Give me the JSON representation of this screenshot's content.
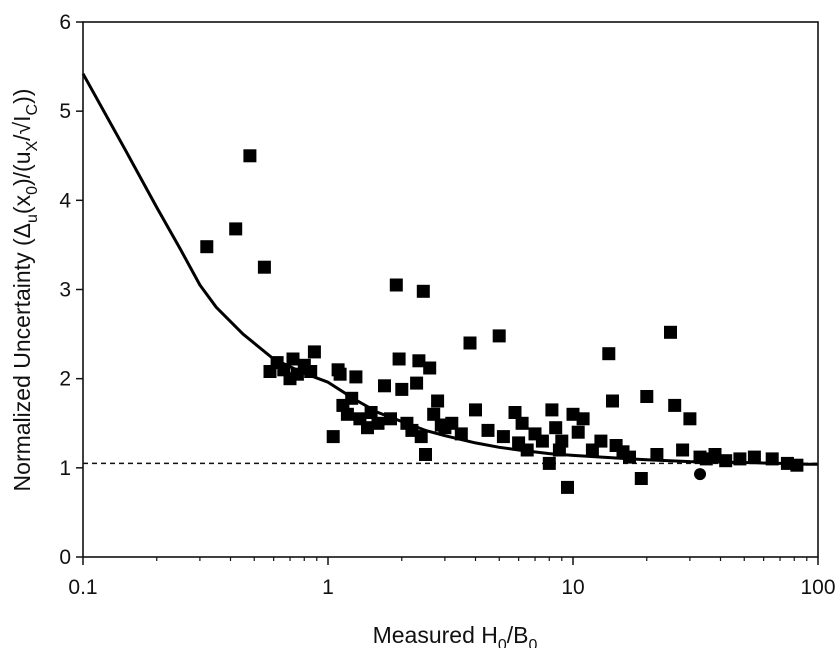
{
  "chart_data": {
    "type": "scatter",
    "x_scale": "log",
    "xlim": [
      0.1,
      100
    ],
    "ylim": [
      0,
      6
    ],
    "x_ticks": [
      "0.1",
      "1",
      "10",
      "100"
    ],
    "y_ticks": [
      "0",
      "1",
      "2",
      "3",
      "4",
      "5",
      "6"
    ],
    "xlabel": {
      "pre": "Measured H",
      "s1": "0",
      "mid": "/B",
      "s2": "0",
      "post": ""
    },
    "ylabel": {
      "p1": "Normalized Uncertainty (Δ",
      "s1": "u",
      "p2": "(x",
      "s2": "0",
      "p3": ")/(u",
      "s3": "X",
      "p4": "/√I",
      "s4": "C",
      "p5": "))"
    },
    "grid": false,
    "legend": "none",
    "reference_line": {
      "y": 1.05,
      "style": "dashed"
    },
    "curve": {
      "x": [
        0.1,
        0.15,
        0.2,
        0.25,
        0.3,
        0.35,
        0.45,
        0.6,
        0.8,
        1.0,
        1.3,
        1.6,
        2.0,
        2.5,
        3.0,
        4.0,
        5.0,
        6.0,
        8.0,
        10,
        15,
        20,
        30,
        50,
        70,
        90,
        100
      ],
      "y": [
        5.42,
        4.55,
        3.92,
        3.45,
        3.05,
        2.8,
        2.5,
        2.22,
        2.06,
        1.96,
        1.76,
        1.62,
        1.52,
        1.42,
        1.36,
        1.28,
        1.23,
        1.2,
        1.16,
        1.14,
        1.11,
        1.09,
        1.07,
        1.06,
        1.05,
        1.04,
        1.04
      ]
    },
    "points": {
      "x": [
        0.32,
        0.42,
        0.48,
        0.55,
        0.58,
        0.62,
        0.66,
        0.7,
        0.72,
        0.75,
        0.8,
        0.85,
        0.88,
        1.05,
        1.1,
        1.12,
        1.15,
        1.2,
        1.25,
        1.3,
        1.35,
        1.45,
        1.5,
        1.6,
        1.7,
        1.8,
        1.9,
        1.95,
        2.0,
        2.1,
        2.2,
        2.3,
        2.35,
        2.4,
        2.45,
        2.5,
        2.6,
        2.7,
        2.8,
        2.9,
        3.0,
        3.2,
        3.5,
        3.8,
        4.0,
        4.5,
        5.0,
        5.2,
        5.8,
        6.0,
        6.2,
        6.5,
        7.0,
        7.5,
        8.0,
        8.2,
        8.5,
        8.8,
        9.0,
        9.5,
        10,
        10.5,
        11,
        12,
        13,
        14,
        14.5,
        15,
        16,
        17,
        19,
        20,
        22,
        25,
        26,
        28,
        30,
        33,
        35,
        38,
        42,
        48,
        55,
        65,
        75,
        82
      ],
      "y": [
        3.48,
        3.68,
        4.5,
        3.25,
        2.08,
        2.18,
        2.1,
        2.0,
        2.22,
        2.05,
        2.15,
        2.08,
        2.3,
        1.35,
        2.1,
        2.05,
        1.7,
        1.6,
        1.78,
        2.02,
        1.55,
        1.45,
        1.62,
        1.5,
        1.92,
        1.55,
        3.05,
        2.22,
        1.88,
        1.5,
        1.42,
        1.95,
        2.2,
        1.35,
        2.98,
        1.15,
        2.12,
        1.6,
        1.75,
        1.48,
        1.45,
        1.5,
        1.38,
        2.4,
        1.65,
        1.42,
        2.48,
        1.35,
        1.62,
        1.28,
        1.5,
        1.2,
        1.38,
        1.3,
        1.05,
        1.65,
        1.45,
        1.2,
        1.3,
        0.78,
        1.6,
        1.4,
        1.55,
        1.2,
        1.3,
        2.28,
        1.75,
        1.25,
        1.18,
        1.12,
        0.88,
        1.8,
        1.15,
        2.52,
        1.7,
        1.2,
        1.55,
        1.12,
        1.1,
        1.15,
        1.08,
        1.1,
        1.12,
        1.1,
        1.05,
        1.03
      ]
    },
    "circle_point": {
      "x": 33,
      "y": 0.93
    }
  }
}
